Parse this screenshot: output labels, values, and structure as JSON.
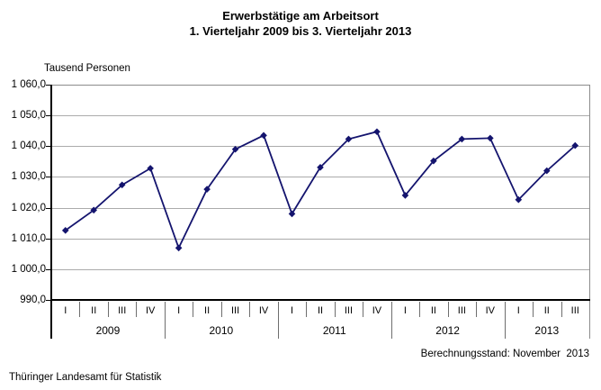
{
  "chart_data": {
    "type": "line",
    "title": "Erwerbstätige am Arbeitsort",
    "subtitle": "1. Vierteljahr 2009 bis 3. Vierteljahr 2013",
    "unit_label": "Tausend Personen",
    "series_name": "Erwerbstätige am Arbeitsort",
    "ylim": [
      990,
      1060
    ],
    "ytick_step": 10,
    "grid": true,
    "legend": "none",
    "marker": "diamond",
    "line_color": "#14146e",
    "gridline_color": "#ababab",
    "plot_border_color": "#8c8c8c",
    "axis_color": "#000000",
    "yticks": [
      {
        "value": 1060,
        "label": "1 060,0"
      },
      {
        "value": 1050,
        "label": "1 050,0"
      },
      {
        "value": 1040,
        "label": "1 040,0"
      },
      {
        "value": 1030,
        "label": "1 030,0"
      },
      {
        "value": 1020,
        "label": "1 020,0"
      },
      {
        "value": 1010,
        "label": "1 010,0"
      },
      {
        "value": 1000,
        "label": "1 000,0"
      },
      {
        "value": 990,
        "label": "990,0"
      }
    ],
    "years": [
      {
        "label": "2009",
        "quarters": [
          "I",
          "II",
          "III",
          "IV"
        ],
        "values": [
          1012.6,
          1019.2,
          1027.4,
          1032.8
        ]
      },
      {
        "label": "2010",
        "quarters": [
          "I",
          "II",
          "III",
          "IV"
        ],
        "values": [
          1006.9,
          1026.0,
          1039.0,
          1043.5
        ]
      },
      {
        "label": "2011",
        "quarters": [
          "I",
          "II",
          "III",
          "IV"
        ],
        "values": [
          1018.0,
          1033.1,
          1042.3,
          1044.7
        ]
      },
      {
        "label": "2012",
        "quarters": [
          "I",
          "II",
          "III",
          "IV"
        ],
        "values": [
          1024.0,
          1035.2,
          1042.3,
          1042.6
        ]
      },
      {
        "label": "2013",
        "quarters": [
          "I",
          "II",
          "III"
        ],
        "values": [
          1022.6,
          1032.0,
          1040.2
        ]
      }
    ],
    "footer_left": "Thüringer Landesamt für Statistik",
    "footer_right": "Berechnungsstand: November  2013"
  }
}
